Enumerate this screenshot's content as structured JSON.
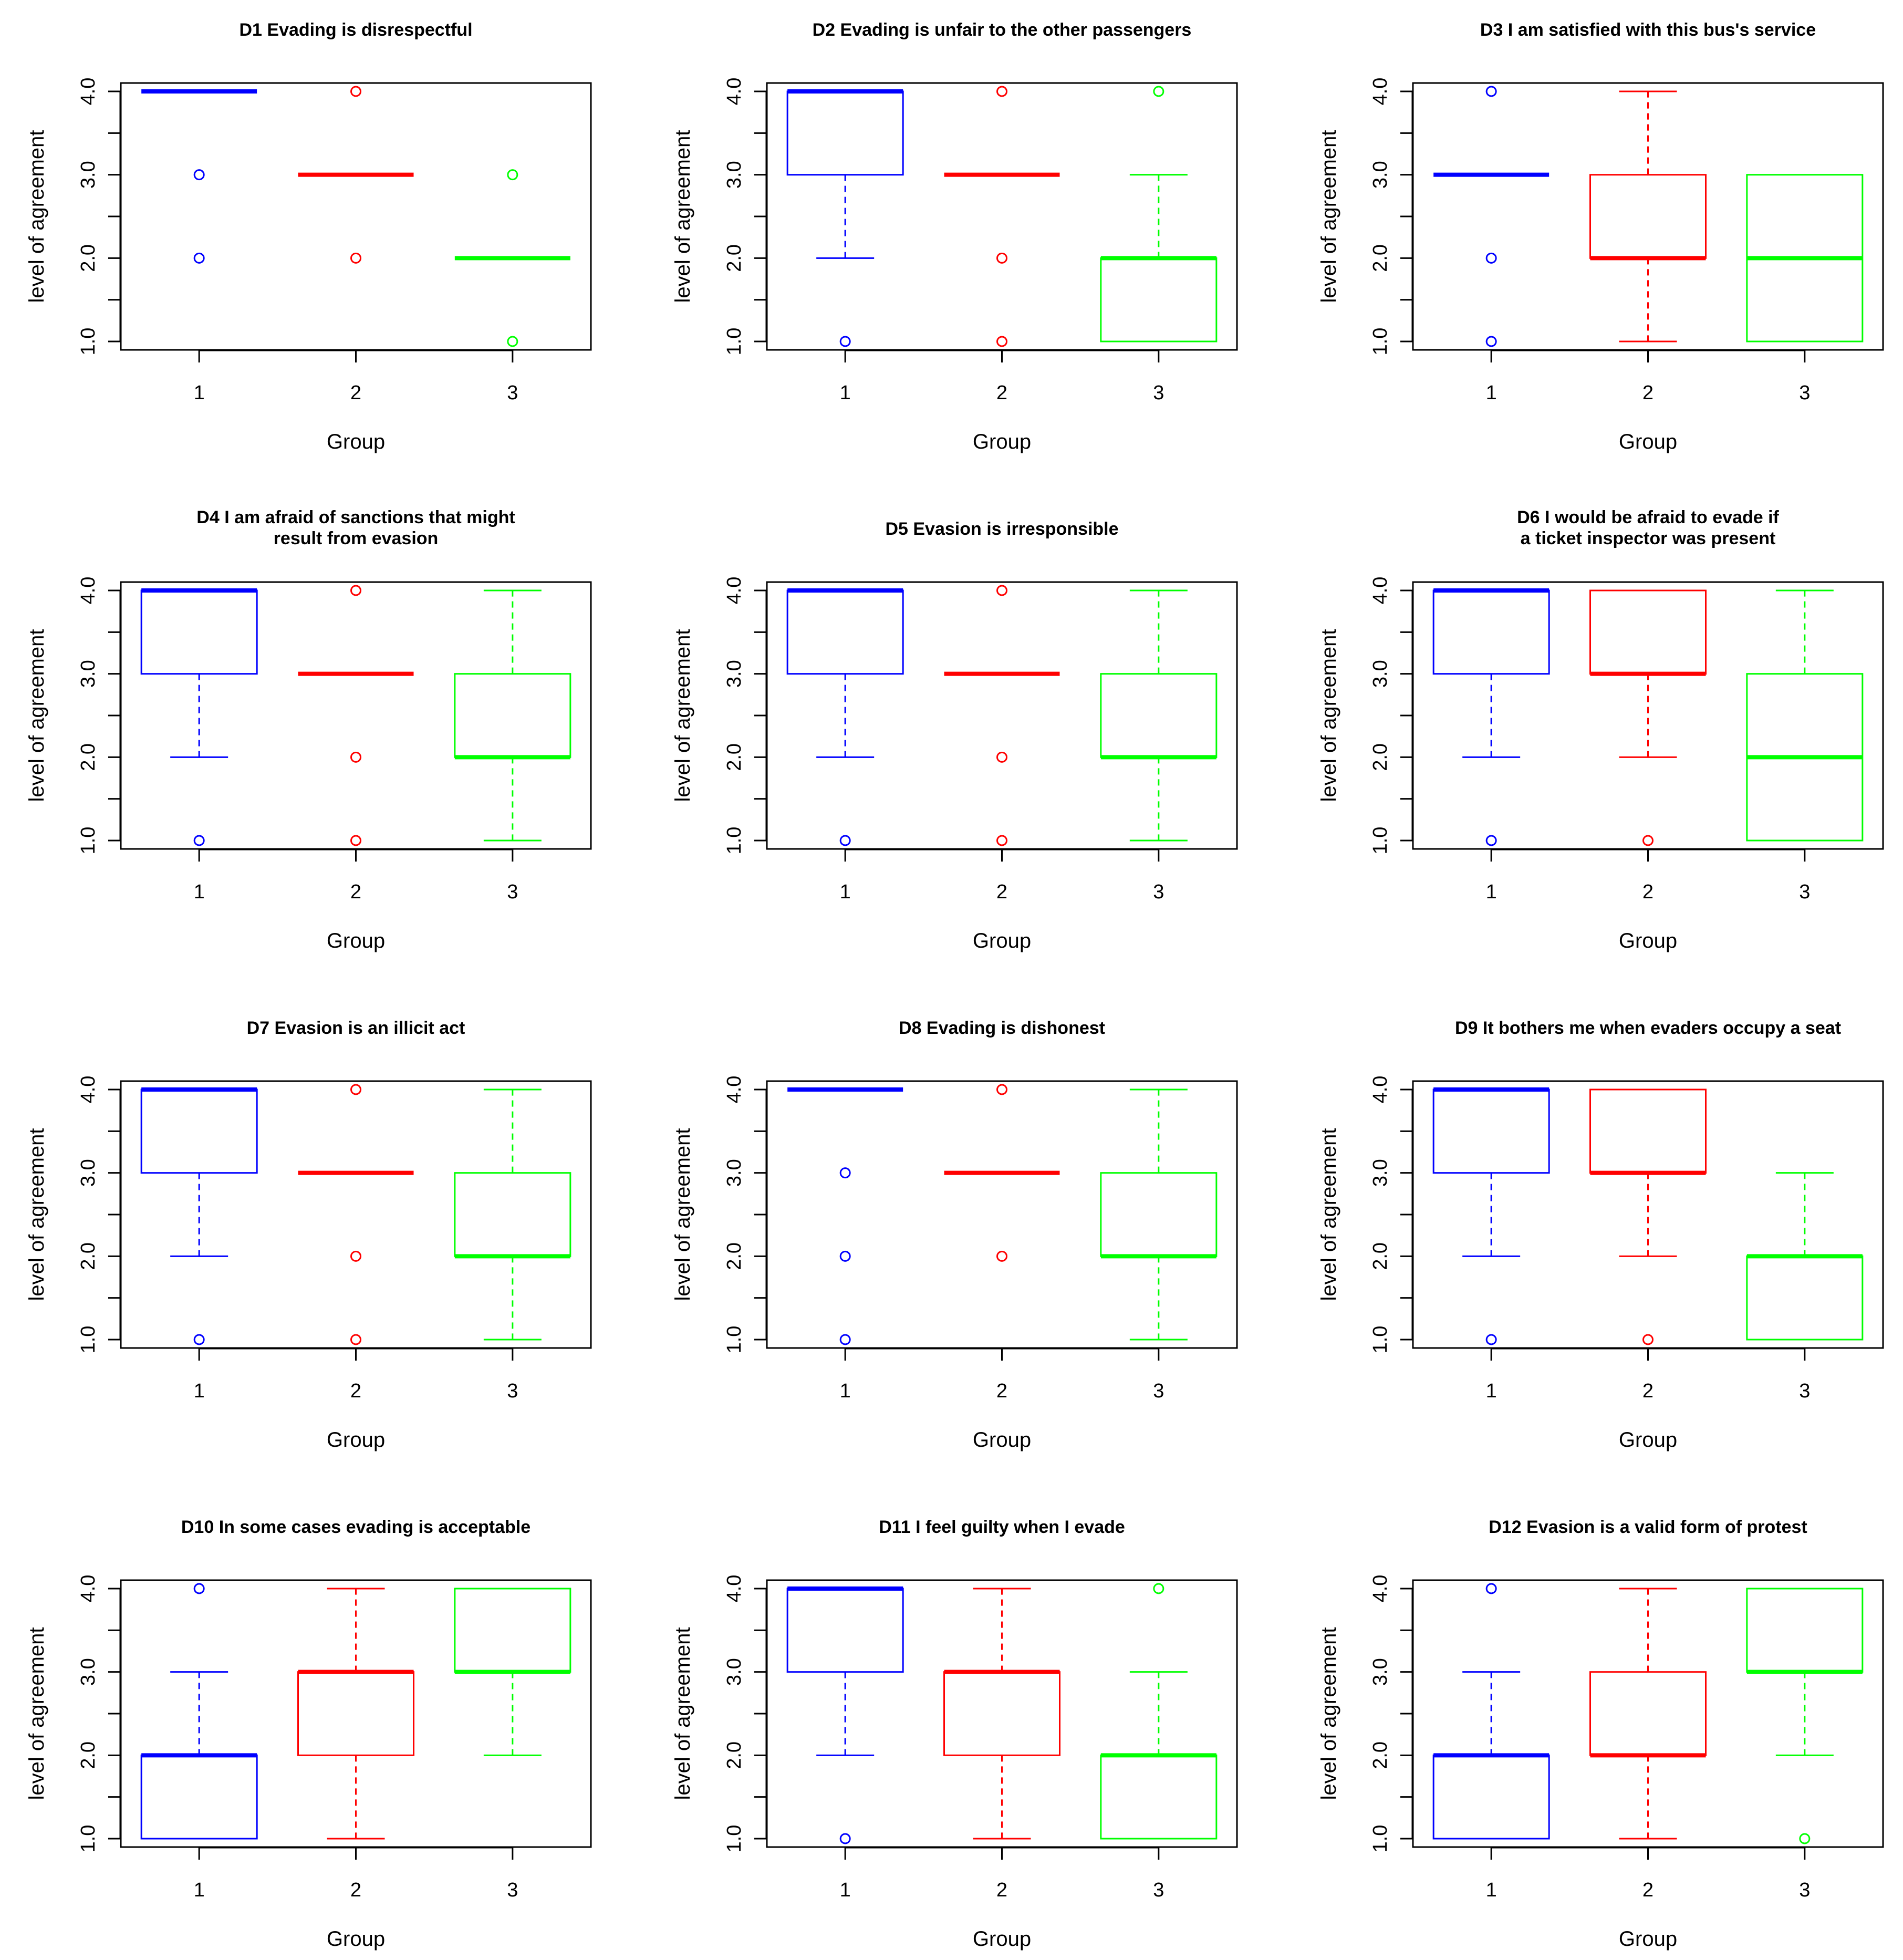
{
  "colors": {
    "group1": "#0000FF",
    "group2": "#FF0000",
    "group3": "#00FF00",
    "frame": "#000000"
  },
  "chart_data": [
    {
      "type": "boxplot",
      "title": [
        "D1 Evading is disrespectful"
      ],
      "xlabel": "Group",
      "ylabel": "level of agreement",
      "categories": [
        "1",
        "2",
        "3"
      ],
      "yticks": [
        "1.0",
        "2.0",
        "3.0",
        "4.0"
      ],
      "ylim": [
        1,
        4
      ],
      "boxes": [
        {
          "q1": 4,
          "median": 4,
          "q3": 4,
          "whisker_low": 4,
          "whisker_high": 4,
          "outliers": [
            3,
            2
          ]
        },
        {
          "q1": 3,
          "median": 3,
          "q3": 3,
          "whisker_low": 3,
          "whisker_high": 3,
          "outliers": [
            4,
            2
          ]
        },
        {
          "q1": 2,
          "median": 2,
          "q3": 2,
          "whisker_low": 2,
          "whisker_high": 2,
          "outliers": [
            3,
            1
          ]
        }
      ]
    },
    {
      "type": "boxplot",
      "title": [
        "D2 Evading is unfair to the other passengers"
      ],
      "xlabel": "Group",
      "ylabel": "level of agreement",
      "categories": [
        "1",
        "2",
        "3"
      ],
      "yticks": [
        "1.0",
        "2.0",
        "3.0",
        "4.0"
      ],
      "ylim": [
        1,
        4
      ],
      "boxes": [
        {
          "q1": 3,
          "median": 4,
          "q3": 4,
          "whisker_low": 2,
          "whisker_high": 4,
          "outliers": [
            1
          ]
        },
        {
          "q1": 3,
          "median": 3,
          "q3": 3,
          "whisker_low": 3,
          "whisker_high": 3,
          "outliers": [
            4,
            2,
            1
          ]
        },
        {
          "q1": 1,
          "median": 2,
          "q3": 2,
          "whisker_low": 1,
          "whisker_high": 3,
          "outliers": [
            4
          ]
        }
      ]
    },
    {
      "type": "boxplot",
      "title": [
        "D3 I am satisfied with this bus's service"
      ],
      "xlabel": "Group",
      "ylabel": "level of agreement",
      "categories": [
        "1",
        "2",
        "3"
      ],
      "yticks": [
        "1.0",
        "2.0",
        "3.0",
        "4.0"
      ],
      "ylim": [
        1,
        4
      ],
      "boxes": [
        {
          "q1": 3,
          "median": 3,
          "q3": 3,
          "whisker_low": 3,
          "whisker_high": 3,
          "outliers": [
            4,
            2,
            1
          ]
        },
        {
          "q1": 2,
          "median": 2,
          "q3": 3,
          "whisker_low": 1,
          "whisker_high": 4,
          "outliers": []
        },
        {
          "q1": 1,
          "median": 2,
          "q3": 3,
          "whisker_low": 1,
          "whisker_high": 3,
          "outliers": []
        }
      ]
    },
    {
      "type": "boxplot",
      "title": [
        "D4 I am afraid of sanctions that might",
        "result from evasion"
      ],
      "xlabel": "Group",
      "ylabel": "level of agreement",
      "categories": [
        "1",
        "2",
        "3"
      ],
      "yticks": [
        "1.0",
        "2.0",
        "3.0",
        "4.0"
      ],
      "ylim": [
        1,
        4
      ],
      "boxes": [
        {
          "q1": 3,
          "median": 4,
          "q3": 4,
          "whisker_low": 2,
          "whisker_high": 4,
          "outliers": [
            1
          ]
        },
        {
          "q1": 3,
          "median": 3,
          "q3": 3,
          "whisker_low": 3,
          "whisker_high": 3,
          "outliers": [
            4,
            2,
            1
          ]
        },
        {
          "q1": 2,
          "median": 2,
          "q3": 3,
          "whisker_low": 1,
          "whisker_high": 4,
          "outliers": []
        }
      ]
    },
    {
      "type": "boxplot",
      "title": [
        "D5 Evasion is irresponsible"
      ],
      "xlabel": "Group",
      "ylabel": "level of agreement",
      "categories": [
        "1",
        "2",
        "3"
      ],
      "yticks": [
        "1.0",
        "2.0",
        "3.0",
        "4.0"
      ],
      "ylim": [
        1,
        4
      ],
      "boxes": [
        {
          "q1": 3,
          "median": 4,
          "q3": 4,
          "whisker_low": 2,
          "whisker_high": 4,
          "outliers": [
            1
          ]
        },
        {
          "q1": 3,
          "median": 3,
          "q3": 3,
          "whisker_low": 3,
          "whisker_high": 3,
          "outliers": [
            4,
            2,
            1
          ]
        },
        {
          "q1": 2,
          "median": 2,
          "q3": 3,
          "whisker_low": 1,
          "whisker_high": 4,
          "outliers": []
        }
      ]
    },
    {
      "type": "boxplot",
      "title": [
        "D6 I would be afraid to evade if",
        "a ticket inspector was present"
      ],
      "xlabel": "Group",
      "ylabel": "level of agreement",
      "categories": [
        "1",
        "2",
        "3"
      ],
      "yticks": [
        "1.0",
        "2.0",
        "3.0",
        "4.0"
      ],
      "ylim": [
        1,
        4
      ],
      "boxes": [
        {
          "q1": 3,
          "median": 4,
          "q3": 4,
          "whisker_low": 2,
          "whisker_high": 4,
          "outliers": [
            1
          ]
        },
        {
          "q1": 3,
          "median": 3,
          "q3": 4,
          "whisker_low": 2,
          "whisker_high": 4,
          "outliers": [
            1
          ]
        },
        {
          "q1": 1,
          "median": 2,
          "q3": 3,
          "whisker_low": 1,
          "whisker_high": 4,
          "outliers": []
        }
      ]
    },
    {
      "type": "boxplot",
      "title": [
        "D7 Evasion is an illicit act"
      ],
      "xlabel": "Group",
      "ylabel": "level of agreement",
      "categories": [
        "1",
        "2",
        "3"
      ],
      "yticks": [
        "1.0",
        "2.0",
        "3.0",
        "4.0"
      ],
      "ylim": [
        1,
        4
      ],
      "boxes": [
        {
          "q1": 3,
          "median": 4,
          "q3": 4,
          "whisker_low": 2,
          "whisker_high": 4,
          "outliers": [
            1
          ]
        },
        {
          "q1": 3,
          "median": 3,
          "q3": 3,
          "whisker_low": 3,
          "whisker_high": 3,
          "outliers": [
            4,
            2,
            1
          ]
        },
        {
          "q1": 2,
          "median": 2,
          "q3": 3,
          "whisker_low": 1,
          "whisker_high": 4,
          "outliers": []
        }
      ]
    },
    {
      "type": "boxplot",
      "title": [
        "D8 Evading is dishonest"
      ],
      "xlabel": "Group",
      "ylabel": "level of agreement",
      "categories": [
        "1",
        "2",
        "3"
      ],
      "yticks": [
        "1.0",
        "2.0",
        "3.0",
        "4.0"
      ],
      "ylim": [
        1,
        4
      ],
      "boxes": [
        {
          "q1": 4,
          "median": 4,
          "q3": 4,
          "whisker_low": 4,
          "whisker_high": 4,
          "outliers": [
            3,
            2,
            1
          ]
        },
        {
          "q1": 3,
          "median": 3,
          "q3": 3,
          "whisker_low": 3,
          "whisker_high": 3,
          "outliers": [
            4,
            2
          ]
        },
        {
          "q1": 2,
          "median": 2,
          "q3": 3,
          "whisker_low": 1,
          "whisker_high": 4,
          "outliers": []
        }
      ]
    },
    {
      "type": "boxplot",
      "title": [
        "D9 It bothers me when evaders occupy a seat"
      ],
      "xlabel": "Group",
      "ylabel": "level of agreement",
      "categories": [
        "1",
        "2",
        "3"
      ],
      "yticks": [
        "1.0",
        "2.0",
        "3.0",
        "4.0"
      ],
      "ylim": [
        1,
        4
      ],
      "boxes": [
        {
          "q1": 3,
          "median": 4,
          "q3": 4,
          "whisker_low": 2,
          "whisker_high": 4,
          "outliers": [
            1
          ]
        },
        {
          "q1": 3,
          "median": 3,
          "q3": 4,
          "whisker_low": 2,
          "whisker_high": 4,
          "outliers": [
            1
          ]
        },
        {
          "q1": 1,
          "median": 2,
          "q3": 2,
          "whisker_low": 1,
          "whisker_high": 3,
          "outliers": []
        }
      ]
    },
    {
      "type": "boxplot",
      "title": [
        "D10 In some cases evading is acceptable"
      ],
      "xlabel": "Group",
      "ylabel": "level of agreement",
      "categories": [
        "1",
        "2",
        "3"
      ],
      "yticks": [
        "1.0",
        "2.0",
        "3.0",
        "4.0"
      ],
      "ylim": [
        1,
        4
      ],
      "boxes": [
        {
          "q1": 1,
          "median": 2,
          "q3": 2,
          "whisker_low": 1,
          "whisker_high": 3,
          "outliers": [
            4
          ]
        },
        {
          "q1": 2,
          "median": 3,
          "q3": 3,
          "whisker_low": 1,
          "whisker_high": 4,
          "outliers": []
        },
        {
          "q1": 3,
          "median": 3,
          "q3": 4,
          "whisker_low": 2,
          "whisker_high": 4,
          "outliers": []
        }
      ]
    },
    {
      "type": "boxplot",
      "title": [
        "D11 I feel guilty when I evade"
      ],
      "xlabel": "Group",
      "ylabel": "level of agreement",
      "categories": [
        "1",
        "2",
        "3"
      ],
      "yticks": [
        "1.0",
        "2.0",
        "3.0",
        "4.0"
      ],
      "ylim": [
        1,
        4
      ],
      "boxes": [
        {
          "q1": 3,
          "median": 4,
          "q3": 4,
          "whisker_low": 2,
          "whisker_high": 4,
          "outliers": [
            1
          ]
        },
        {
          "q1": 2,
          "median": 3,
          "q3": 3,
          "whisker_low": 1,
          "whisker_high": 4,
          "outliers": []
        },
        {
          "q1": 1,
          "median": 2,
          "q3": 2,
          "whisker_low": 1,
          "whisker_high": 3,
          "outliers": [
            4
          ]
        }
      ]
    },
    {
      "type": "boxplot",
      "title": [
        "D12 Evasion is a valid form of protest"
      ],
      "xlabel": "Group",
      "ylabel": "level of agreement",
      "categories": [
        "1",
        "2",
        "3"
      ],
      "yticks": [
        "1.0",
        "2.0",
        "3.0",
        "4.0"
      ],
      "ylim": [
        1,
        4
      ],
      "boxes": [
        {
          "q1": 1,
          "median": 2,
          "q3": 2,
          "whisker_low": 1,
          "whisker_high": 3,
          "outliers": [
            4
          ]
        },
        {
          "q1": 2,
          "median": 2,
          "q3": 3,
          "whisker_low": 1,
          "whisker_high": 4,
          "outliers": []
        },
        {
          "q1": 3,
          "median": 3,
          "q3": 4,
          "whisker_low": 2,
          "whisker_high": 4,
          "outliers": [
            1
          ]
        }
      ]
    }
  ]
}
